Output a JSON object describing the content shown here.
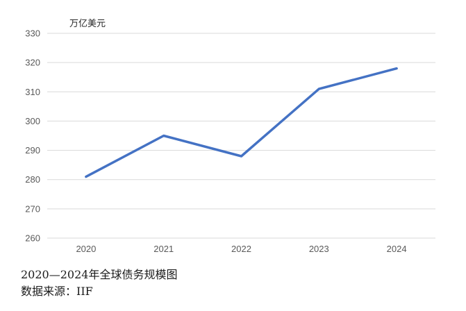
{
  "chart_data": {
    "type": "line",
    "x": [
      "2020",
      "2021",
      "2022",
      "2023",
      "2024"
    ],
    "series": [
      {
        "values": [
          281,
          295,
          288,
          311,
          318
        ],
        "color": "#4472C4"
      }
    ],
    "ylabel": "万亿美元",
    "ylim": [
      260,
      330
    ],
    "yticks": [
      260,
      270,
      280,
      290,
      300,
      310,
      320,
      330
    ],
    "grid": true
  },
  "caption": {
    "title": "2020—2024年全球债务规模图",
    "source": "数据来源：IIF"
  }
}
